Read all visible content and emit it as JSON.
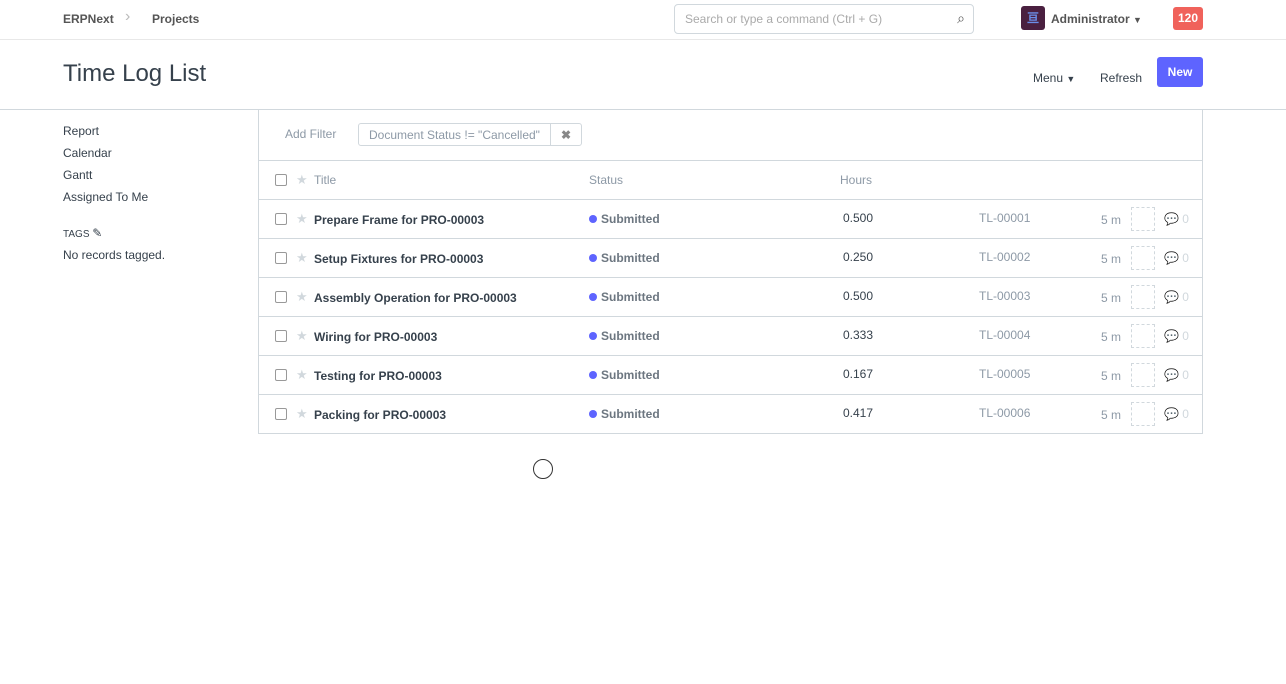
{
  "navbar": {
    "brand": "ERPNext",
    "breadcrumb": "Projects",
    "search_placeholder": "Search or type a command (Ctrl + G)",
    "user": "Administrator",
    "notifications": "120"
  },
  "header": {
    "title": "Time Log List",
    "menu": "Menu",
    "refresh": "Refresh",
    "new": "New"
  },
  "sidebar": {
    "items": [
      {
        "label": "Report"
      },
      {
        "label": "Calendar"
      },
      {
        "label": "Gantt"
      },
      {
        "label": "Assigned To Me"
      }
    ],
    "tags_label": "TAGS",
    "no_tags": "No records tagged."
  },
  "filters": {
    "add": "Add Filter",
    "active": "Document Status != \"Cancelled\"",
    "remove": "✖"
  },
  "columns": {
    "title": "Title",
    "status": "Status",
    "hours": "Hours"
  },
  "rows": [
    {
      "title": "Prepare Frame for PRO-00003",
      "status": "Submitted",
      "hours": "0.500",
      "name": "TL-00001",
      "modified": "5 m",
      "comments": "0"
    },
    {
      "title": "Setup Fixtures for PRO-00003",
      "status": "Submitted",
      "hours": "0.250",
      "name": "TL-00002",
      "modified": "5 m",
      "comments": "0"
    },
    {
      "title": "Assembly Operation for PRO-00003",
      "status": "Submitted",
      "hours": "0.500",
      "name": "TL-00003",
      "modified": "5 m",
      "comments": "0"
    },
    {
      "title": "Wiring for PRO-00003",
      "status": "Submitted",
      "hours": "0.333",
      "name": "TL-00004",
      "modified": "5 m",
      "comments": "0"
    },
    {
      "title": "Testing for PRO-00003",
      "status": "Submitted",
      "hours": "0.167",
      "name": "TL-00005",
      "modified": "5 m",
      "comments": "0"
    },
    {
      "title": "Packing for PRO-00003",
      "status": "Submitted",
      "hours": "0.417",
      "name": "TL-00006",
      "modified": "5 m",
      "comments": "0"
    }
  ]
}
